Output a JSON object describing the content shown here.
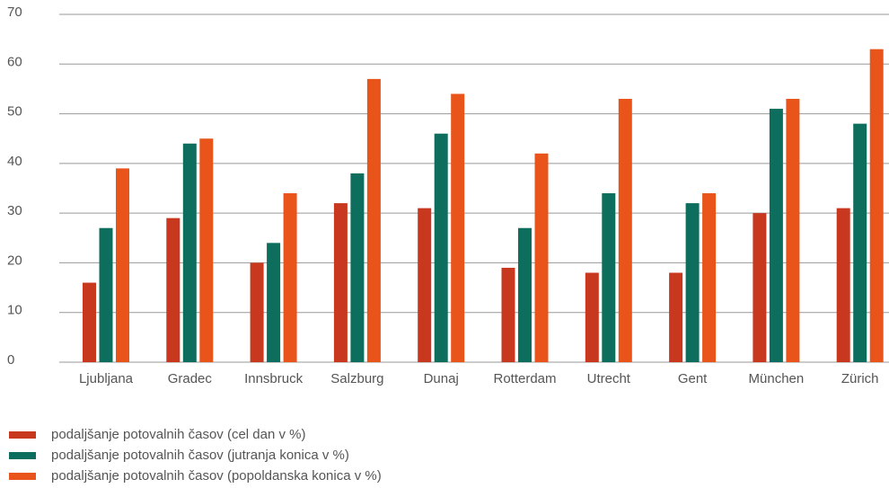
{
  "chart_data": {
    "type": "bar",
    "categories": [
      "Ljubljana",
      "Gradec",
      "Innsbruck",
      "Salzburg",
      "Dunaj",
      "Rotterdam",
      "Utrecht",
      "Gent",
      "München",
      "Zürich"
    ],
    "series": [
      {
        "name": "podaljšanje potovalnih časov (cel dan v %)",
        "color": "#c8381e",
        "values": [
          16,
          29,
          20,
          32,
          31,
          19,
          18,
          18,
          30,
          31
        ]
      },
      {
        "name": "podaljšanje potovalnih časov (jutranja konica v %)",
        "color": "#0e6e5e",
        "values": [
          27,
          44,
          24,
          38,
          46,
          27,
          34,
          32,
          51,
          48
        ]
      },
      {
        "name": "podaljšanje potovalnih časov (popoldanska konica v %)",
        "color": "#e8541a",
        "values": [
          39,
          45,
          34,
          57,
          54,
          42,
          53,
          34,
          53,
          63
        ]
      }
    ],
    "ylim": [
      0,
      70
    ],
    "yticks": [
      0,
      10,
      20,
      30,
      40,
      50,
      60,
      70
    ],
    "grid": true,
    "legend": "bottom"
  }
}
